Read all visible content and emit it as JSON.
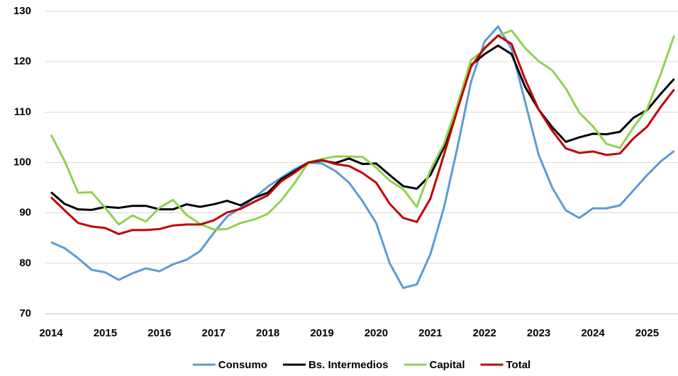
{
  "chart_data": {
    "type": "line",
    "categories": [
      "2014",
      null,
      null,
      null,
      "2015",
      null,
      null,
      null,
      "2016",
      null,
      null,
      null,
      "2017",
      null,
      null,
      null,
      "2018",
      null,
      null,
      null,
      "2019",
      null,
      null,
      null,
      "2020",
      null,
      null,
      null,
      "2021",
      null,
      null,
      null,
      "2022",
      null,
      null,
      null,
      "2023",
      null,
      null,
      null,
      "2024",
      null,
      null,
      null,
      "2025",
      null,
      null
    ],
    "series": [
      {
        "name": "Consumo",
        "color": "#5b9bd5",
        "values": [
          84.2,
          83,
          81,
          78.7,
          78.2,
          76.7,
          78,
          79,
          78.4,
          79.8,
          80.7,
          82.4,
          86,
          89.3,
          91,
          93,
          95.2,
          97,
          98.7,
          100,
          99.8,
          98.3,
          96,
          92.3,
          88,
          80,
          75.1,
          75.8,
          81.8,
          91,
          103,
          116,
          124,
          127,
          122.5,
          112,
          101.5,
          95,
          90.5,
          89,
          90.9,
          90.9,
          91.5,
          94.5,
          97.5,
          100.2,
          102.3
        ]
      },
      {
        "name": "Bs. Intermedios",
        "color": "#000000",
        "values": [
          94.1,
          91.8,
          90.7,
          90.6,
          91.2,
          91,
          91.4,
          91.4,
          90.7,
          90.7,
          91.7,
          91.2,
          91.7,
          92.4,
          91.5,
          93,
          94,
          96.7,
          98.3,
          100,
          100.4,
          99.9,
          100.8,
          99.7,
          99.8,
          97.5,
          95.3,
          94.8,
          97.5,
          103,
          111,
          119.3,
          121.5,
          123.2,
          121.5,
          115,
          110.5,
          107,
          104.1,
          105,
          105.7,
          105.6,
          106.1,
          108.9,
          110.4,
          113.6,
          116.6
        ]
      },
      {
        "name": "Capital",
        "color": "#92d050",
        "values": [
          105.5,
          100.3,
          94,
          94.1,
          91,
          87.7,
          89.5,
          88.3,
          91,
          92.6,
          89.6,
          87.8,
          86.7,
          86.8,
          88,
          88.7,
          89.8,
          92.5,
          96,
          100,
          100.7,
          101.2,
          101.2,
          101.1,
          99,
          96.4,
          94.7,
          91.2,
          98.5,
          103.7,
          111.5,
          120.3,
          122.5,
          125.2,
          126.2,
          122.7,
          120.1,
          118.3,
          114.7,
          109.9,
          107.2,
          103.7,
          102.9,
          107,
          110.6,
          117.5,
          125.2
        ]
      },
      {
        "name": "Total",
        "color": "#c00000",
        "values": [
          93.1,
          90.5,
          88,
          87.3,
          87,
          85.8,
          86.6,
          86.6,
          86.8,
          87.5,
          87.7,
          87.7,
          88.5,
          90.1,
          90.8,
          92.2,
          93.5,
          96.3,
          98,
          100,
          100.5,
          99.7,
          99.3,
          97.9,
          96,
          91.8,
          89,
          88.2,
          92.8,
          101.5,
          110.5,
          119,
          122.7,
          125.2,
          123.5,
          116.5,
          110.5,
          106.3,
          102.8,
          101.9,
          102.2,
          101.5,
          101.8,
          104.8,
          107.1,
          111,
          114.5
        ]
      }
    ],
    "ylim": [
      70,
      130
    ],
    "yticks": [
      70,
      80,
      90,
      100,
      110,
      120,
      130
    ],
    "grid": true,
    "legend": "bottom"
  }
}
